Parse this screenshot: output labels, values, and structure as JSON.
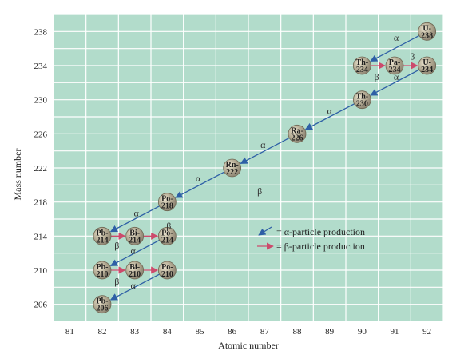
{
  "chart_data": {
    "type": "scatter",
    "xlabel": "Atomic number",
    "ylabel": "Mass number",
    "xlim": [
      80.5,
      92.5
    ],
    "ylim": [
      204,
      240
    ],
    "xticks": [
      "81",
      "82",
      "83",
      "84",
      "85",
      "86",
      "87",
      "88",
      "89",
      "90",
      "91",
      "92"
    ],
    "yticks": [
      "206",
      "210",
      "214",
      "218",
      "222",
      "226",
      "230",
      "234",
      "238"
    ],
    "grid": true,
    "colors": {
      "plot_bg": "#b2dccb",
      "grid": "#ffffff",
      "alpha_arrow": "#2e5fa6",
      "beta_arrow": "#cc4b6c",
      "nuclide_fill": "#a8a08c",
      "nuclide_edge": "#6e6652"
    },
    "nuclides": [
      {
        "label": "U-238",
        "x": 92,
        "y": 238
      },
      {
        "label": "Th-234",
        "x": 90,
        "y": 234
      },
      {
        "label": "Pa-234",
        "x": 91,
        "y": 234
      },
      {
        "label": "U-234",
        "x": 92,
        "y": 234
      },
      {
        "label": "Th-230",
        "x": 90,
        "y": 230
      },
      {
        "label": "Ra-226",
        "x": 88,
        "y": 226
      },
      {
        "label": "Rn-222",
        "x": 86,
        "y": 222
      },
      {
        "label": "Po-218",
        "x": 84,
        "y": 218
      },
      {
        "label": "Pb-214",
        "x": 82,
        "y": 214
      },
      {
        "label": "Bi-214",
        "x": 83,
        "y": 214
      },
      {
        "label": "Po-214",
        "x": 84,
        "y": 214
      },
      {
        "label": "Pb-210",
        "x": 82,
        "y": 210
      },
      {
        "label": "Bi-210",
        "x": 83,
        "y": 210
      },
      {
        "label": "Po-210",
        "x": 84,
        "y": 210
      },
      {
        "label": "Pb-206",
        "x": 82,
        "y": 206
      }
    ],
    "decays": [
      {
        "type": "alpha",
        "from": [
          92,
          238
        ],
        "to": [
          90,
          234
        ]
      },
      {
        "type": "beta",
        "from": [
          90,
          234
        ],
        "to": [
          91,
          234
        ]
      },
      {
        "type": "beta",
        "from": [
          91,
          234
        ],
        "to": [
          92,
          234
        ]
      },
      {
        "type": "alpha",
        "from": [
          92,
          234
        ],
        "to": [
          90,
          230
        ]
      },
      {
        "type": "alpha",
        "from": [
          90,
          230
        ],
        "to": [
          88,
          226
        ]
      },
      {
        "type": "alpha",
        "from": [
          88,
          226
        ],
        "to": [
          86,
          222
        ]
      },
      {
        "type": "alpha",
        "from": [
          86,
          222
        ],
        "to": [
          84,
          218
        ]
      },
      {
        "type": "alpha",
        "from": [
          84,
          218
        ],
        "to": [
          82,
          214
        ]
      },
      {
        "type": "beta",
        "from": [
          82,
          214
        ],
        "to": [
          83,
          214
        ]
      },
      {
        "type": "beta",
        "from": [
          83,
          214
        ],
        "to": [
          84,
          214
        ]
      },
      {
        "type": "alpha",
        "from": [
          84,
          214
        ],
        "to": [
          82,
          210
        ]
      },
      {
        "type": "beta",
        "from": [
          82,
          210
        ],
        "to": [
          83,
          210
        ]
      },
      {
        "type": "beta",
        "from": [
          83,
          210
        ],
        "to": [
          84,
          210
        ]
      },
      {
        "type": "alpha",
        "from": [
          84,
          210
        ],
        "to": [
          82,
          206
        ]
      }
    ],
    "symbols": {
      "alpha": "α",
      "beta": "β"
    },
    "annotations": [
      {
        "text": "α",
        "x": 91.05,
        "y": 237.3
      },
      {
        "text": "β",
        "x": 90.45,
        "y": 232.7
      },
      {
        "text": "β",
        "x": 91.55,
        "y": 235.1
      },
      {
        "text": "α",
        "x": 91.05,
        "y": 232.7
      },
      {
        "text": "α",
        "x": 89.0,
        "y": 228.7
      },
      {
        "text": "α",
        "x": 86.95,
        "y": 224.7
      },
      {
        "text": "α",
        "x": 84.95,
        "y": 220.8
      },
      {
        "text": "β",
        "x": 86.85,
        "y": 219.3
      },
      {
        "text": "α",
        "x": 83.05,
        "y": 216.7
      },
      {
        "text": "β",
        "x": 84.05,
        "y": 215.2
      },
      {
        "text": "β",
        "x": 82.45,
        "y": 212.9
      },
      {
        "text": "α",
        "x": 82.95,
        "y": 212.3
      },
      {
        "text": "β",
        "x": 82.45,
        "y": 208.7
      },
      {
        "text": "α",
        "x": 82.95,
        "y": 208.2
      }
    ],
    "legend": [
      {
        "type": "alpha",
        "text": "= α-particle production"
      },
      {
        "type": "beta",
        "text": "= β-particle production"
      }
    ],
    "legend_position": "center-right"
  }
}
